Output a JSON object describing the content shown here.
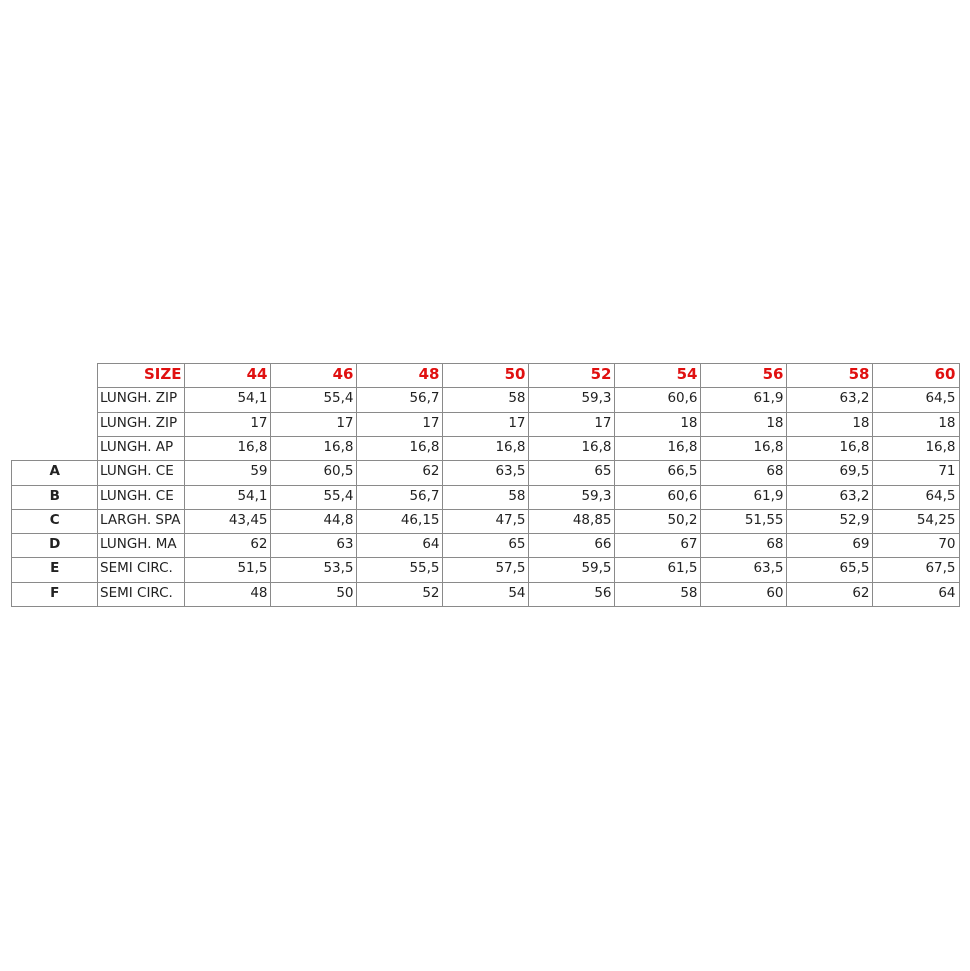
{
  "table": {
    "header_label": "SIZE",
    "sizes": [
      "44",
      "46",
      "48",
      "50",
      "52",
      "54",
      "56",
      "58",
      "60"
    ],
    "header_color": "#e01010",
    "rows": [
      {
        "letter": "",
        "label": "LUNGH. ZIP",
        "values": [
          "54,1",
          "55,4",
          "56,7",
          "58",
          "59,3",
          "60,6",
          "61,9",
          "63,2",
          "64,5"
        ]
      },
      {
        "letter": "",
        "label": "LUNGH. ZIP",
        "values": [
          "17",
          "17",
          "17",
          "17",
          "17",
          "18",
          "18",
          "18",
          "18"
        ]
      },
      {
        "letter": "",
        "label": "LUNGH. AP",
        "values": [
          "16,8",
          "16,8",
          "16,8",
          "16,8",
          "16,8",
          "16,8",
          "16,8",
          "16,8",
          "16,8"
        ]
      },
      {
        "letter": "A",
        "label": "LUNGH. CE",
        "values": [
          "59",
          "60,5",
          "62",
          "63,5",
          "65",
          "66,5",
          "68",
          "69,5",
          "71"
        ]
      },
      {
        "letter": "B",
        "label": "LUNGH. CE",
        "values": [
          "54,1",
          "55,4",
          "56,7",
          "58",
          "59,3",
          "60,6",
          "61,9",
          "63,2",
          "64,5"
        ]
      },
      {
        "letter": "C",
        "label": "LARGH. SPA",
        "values": [
          "43,45",
          "44,8",
          "46,15",
          "47,5",
          "48,85",
          "50,2",
          "51,55",
          "52,9",
          "54,25"
        ]
      },
      {
        "letter": "D",
        "label": "LUNGH. MA",
        "values": [
          "62",
          "63",
          "64",
          "65",
          "66",
          "67",
          "68",
          "69",
          "70"
        ]
      },
      {
        "letter": "E",
        "label": "SEMI CIRC.",
        "values": [
          "51,5",
          "53,5",
          "55,5",
          "57,5",
          "59,5",
          "61,5",
          "63,5",
          "65,5",
          "67,5"
        ]
      },
      {
        "letter": "F",
        "label": "SEMI CIRC.",
        "values": [
          "48",
          "50",
          "52",
          "54",
          "56",
          "58",
          "60",
          "62",
          "64"
        ]
      }
    ]
  }
}
